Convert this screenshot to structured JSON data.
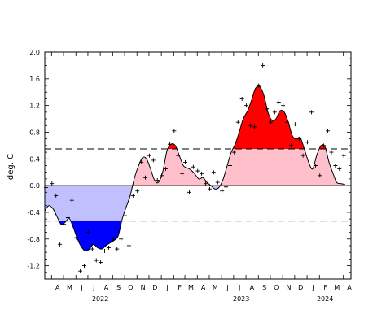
{
  "chart_data": {
    "type": "area",
    "title": "",
    "xlabel": "",
    "ylabel": "deg. C",
    "ylim": [
      -1.4,
      2.0
    ],
    "xlim": [
      "2022-03-15",
      "2024-04-20"
    ],
    "y_ticks": [
      "-1.2",
      "-0.8",
      "-0.4",
      "0.0",
      "0.4",
      "0.8",
      "1.2",
      "1.6",
      "2.0"
    ],
    "y_tick_values": [
      -1.2,
      -0.8,
      -0.4,
      0.0,
      0.4,
      0.8,
      1.2,
      1.6,
      2.0
    ],
    "month_labels": [
      {
        "date": "2022-04-01",
        "label": "A"
      },
      {
        "date": "2022-05-01",
        "label": "M"
      },
      {
        "date": "2022-06-01",
        "label": "J"
      },
      {
        "date": "2022-07-01",
        "label": "J"
      },
      {
        "date": "2022-08-01",
        "label": "A"
      },
      {
        "date": "2022-09-01",
        "label": "S"
      },
      {
        "date": "2022-10-01",
        "label": "O"
      },
      {
        "date": "2022-11-01",
        "label": "N"
      },
      {
        "date": "2022-12-01",
        "label": "D"
      },
      {
        "date": "2023-01-01",
        "label": "J"
      },
      {
        "date": "2023-02-01",
        "label": "F"
      },
      {
        "date": "2023-03-01",
        "label": "M"
      },
      {
        "date": "2023-04-01",
        "label": "A"
      },
      {
        "date": "2023-05-01",
        "label": "M"
      },
      {
        "date": "2023-06-01",
        "label": "J"
      },
      {
        "date": "2023-07-01",
        "label": "J"
      },
      {
        "date": "2023-08-01",
        "label": "A"
      },
      {
        "date": "2023-09-01",
        "label": "S"
      },
      {
        "date": "2023-10-01",
        "label": "O"
      },
      {
        "date": "2023-11-01",
        "label": "N"
      },
      {
        "date": "2023-12-01",
        "label": "D"
      },
      {
        "date": "2024-01-01",
        "label": "J"
      },
      {
        "date": "2024-02-01",
        "label": "F"
      },
      {
        "date": "2024-03-01",
        "label": "M"
      },
      {
        "date": "2024-04-01",
        "label": "A"
      }
    ],
    "year_labels": [
      {
        "date": "2022-08-01",
        "label": "2022"
      },
      {
        "date": "2023-07-20",
        "label": "2023"
      },
      {
        "date": "2024-02-15",
        "label": "2024"
      }
    ],
    "thresholds": [
      0.55,
      -0.53
    ],
    "colors": {
      "positive_strong": "#ff0000",
      "positive_weak": "#ffc0cb",
      "negative_strong": "#0000ff",
      "negative_weak": "#c0c0ff",
      "line": "#000000"
    },
    "grid": false,
    "legend": "none",
    "series": [
      {
        "type": "line",
        "x": [
          "2022-03-15",
          "2022-03-25",
          "2022-04-05",
          "2022-04-15",
          "2022-04-25",
          "2022-05-05",
          "2022-05-15",
          "2022-05-25",
          "2022-06-05",
          "2022-06-15",
          "2022-06-25",
          "2022-07-05",
          "2022-07-15",
          "2022-07-25",
          "2022-08-05",
          "2022-08-15",
          "2022-08-25",
          "2022-09-05",
          "2022-09-15",
          "2022-09-25",
          "2022-10-05",
          "2022-10-15",
          "2022-10-25",
          "2022-11-05",
          "2022-11-15",
          "2022-11-25",
          "2022-12-05",
          "2022-12-15",
          "2022-12-25",
          "2023-01-05",
          "2023-01-15",
          "2023-01-25",
          "2023-02-05",
          "2023-02-15",
          "2023-02-25",
          "2023-03-05",
          "2023-03-15",
          "2023-03-25",
          "2023-04-05",
          "2023-04-15",
          "2023-04-25",
          "2023-05-05",
          "2023-05-15",
          "2023-05-25",
          "2023-06-05",
          "2023-06-15",
          "2023-06-25",
          "2023-07-05",
          "2023-07-15",
          "2023-07-25",
          "2023-08-05",
          "2023-08-15",
          "2023-08-25",
          "2023-09-05",
          "2023-09-15",
          "2023-09-25",
          "2023-10-05",
          "2023-10-15",
          "2023-10-25",
          "2023-11-05",
          "2023-11-15",
          "2023-11-25",
          "2023-12-05",
          "2023-12-15",
          "2023-12-25",
          "2024-01-05",
          "2024-01-15",
          "2024-01-25",
          "2024-02-05",
          "2024-02-15",
          "2024-02-25",
          "2024-03-05",
          "2024-03-15",
          "2024-03-25",
          "2024-04-05"
        ],
        "y": [
          -0.38,
          -0.3,
          -0.35,
          -0.47,
          -0.58,
          -0.55,
          -0.49,
          -0.62,
          -0.8,
          -0.92,
          -0.98,
          -0.95,
          -0.88,
          -0.93,
          -0.95,
          -0.9,
          -0.86,
          -0.82,
          -0.75,
          -0.5,
          -0.32,
          -0.15,
          0.1,
          0.3,
          0.42,
          0.4,
          0.25,
          0.08,
          0.05,
          0.22,
          0.52,
          0.62,
          0.6,
          0.45,
          0.3,
          0.27,
          0.24,
          0.18,
          0.1,
          0.12,
          0.05,
          0.0,
          -0.05,
          -0.03,
          0.1,
          0.3,
          0.5,
          0.62,
          0.8,
          1.0,
          1.12,
          1.28,
          1.46,
          1.48,
          1.35,
          1.1,
          0.98,
          1.0,
          1.12,
          1.1,
          0.95,
          0.75,
          0.7,
          0.72,
          0.55,
          0.35,
          0.25,
          0.45,
          0.6,
          0.58,
          0.35,
          0.2,
          0.05,
          0.03,
          0.02
        ]
      },
      {
        "type": "scatter",
        "marker": "+",
        "x": [
          "2022-03-18",
          "2022-04-02",
          "2022-04-12",
          "2022-04-22",
          "2022-05-02",
          "2022-05-12",
          "2022-05-22",
          "2022-06-02",
          "2022-06-12",
          "2022-06-22",
          "2022-07-02",
          "2022-07-12",
          "2022-07-22",
          "2022-08-02",
          "2022-08-12",
          "2022-08-22",
          "2022-09-02",
          "2022-09-12",
          "2022-09-22",
          "2022-10-02",
          "2022-10-12",
          "2022-10-22",
          "2022-11-02",
          "2022-11-12",
          "2022-11-22",
          "2022-12-02",
          "2022-12-12",
          "2022-12-22",
          "2023-01-02",
          "2023-01-12",
          "2023-01-22",
          "2023-02-02",
          "2023-02-12",
          "2023-02-22",
          "2023-03-02",
          "2023-03-12",
          "2023-03-22",
          "2023-04-02",
          "2023-04-12",
          "2023-04-22",
          "2023-05-02",
          "2023-05-12",
          "2023-05-22",
          "2023-06-02",
          "2023-06-12",
          "2023-06-22",
          "2023-07-02",
          "2023-07-12",
          "2023-07-22",
          "2023-08-02",
          "2023-08-12",
          "2023-08-22",
          "2023-09-02",
          "2023-09-12",
          "2023-09-22",
          "2023-10-02",
          "2023-10-12",
          "2023-10-22",
          "2023-11-02",
          "2023-11-12",
          "2023-11-22",
          "2023-12-02",
          "2023-12-12",
          "2023-12-22",
          "2024-01-02",
          "2024-01-12",
          "2024-01-22",
          "2024-02-02",
          "2024-02-12",
          "2024-02-22",
          "2024-03-02",
          "2024-03-12",
          "2024-03-22",
          "2024-04-02"
        ],
        "y": [
          -0.03,
          0.03,
          -0.15,
          -0.88,
          -0.58,
          -0.48,
          -0.22,
          -0.78,
          -1.28,
          -1.2,
          -0.7,
          -0.95,
          -1.12,
          -1.15,
          -0.98,
          -0.93,
          -0.8,
          -0.95,
          -0.8,
          -0.45,
          -0.9,
          -0.15,
          -0.08,
          0.35,
          0.12,
          0.45,
          0.38,
          0.08,
          0.15,
          0.25,
          0.62,
          0.82,
          0.45,
          0.18,
          0.35,
          -0.1,
          0.28,
          0.22,
          0.18,
          0.03,
          -0.05,
          0.2,
          0.05,
          -0.08,
          -0.02,
          0.3,
          0.5,
          0.95,
          1.3,
          1.2,
          0.9,
          0.88,
          1.5,
          1.8,
          1.15,
          0.95,
          1.1,
          1.25,
          1.2,
          0.95,
          0.6,
          0.92,
          0.7,
          0.45,
          0.65,
          1.1,
          0.3,
          0.15,
          0.6,
          0.82,
          0.5,
          0.3,
          0.25,
          0.45
        ]
      }
    ]
  }
}
